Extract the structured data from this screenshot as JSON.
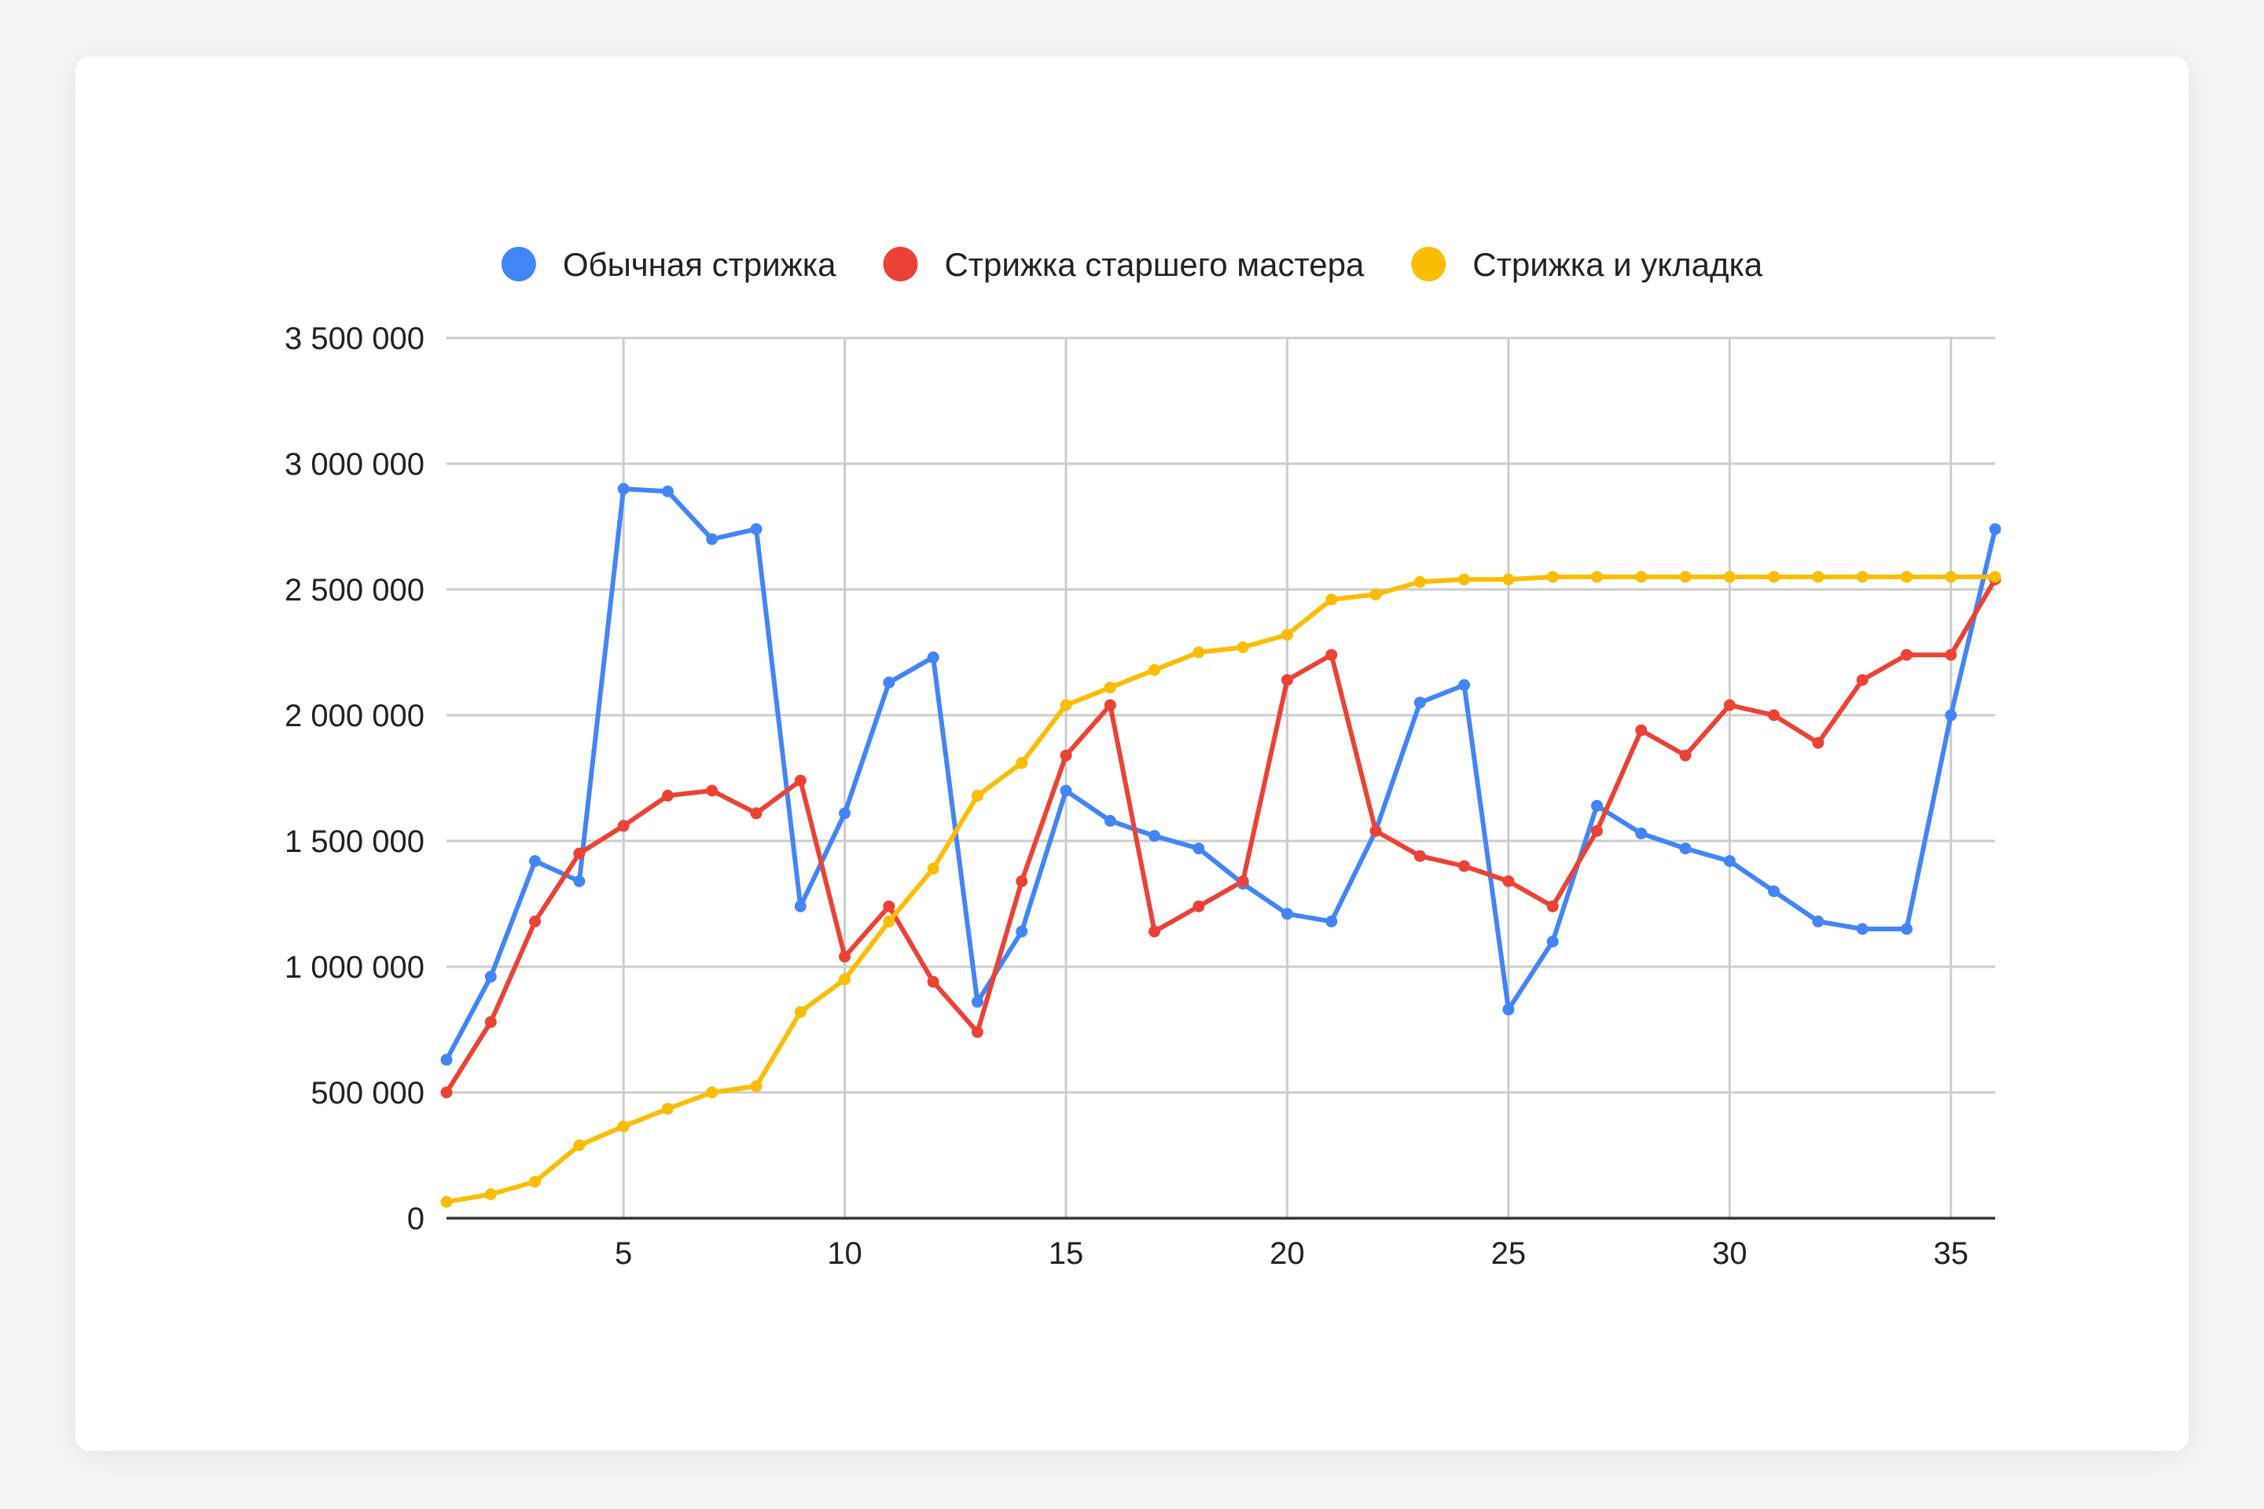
{
  "chart_data": {
    "type": "line",
    "title": "",
    "xlabel": "",
    "ylabel": "",
    "x": [
      1,
      2,
      3,
      4,
      5,
      6,
      7,
      8,
      9,
      10,
      11,
      12,
      13,
      14,
      15,
      16,
      17,
      18,
      19,
      20,
      21,
      22,
      23,
      24,
      25,
      26,
      27,
      28,
      29,
      30,
      31,
      32,
      33,
      34,
      35,
      36
    ],
    "xlim": [
      1,
      36
    ],
    "ylim": [
      0,
      3500000
    ],
    "x_ticks": [
      5,
      10,
      15,
      20,
      25,
      30,
      35
    ],
    "x_tick_labels": [
      "5",
      "10",
      "15",
      "20",
      "25",
      "30",
      "35"
    ],
    "y_ticks": [
      0,
      500000,
      1000000,
      1500000,
      2000000,
      2500000,
      3000000,
      3500000
    ],
    "y_tick_labels": [
      "0",
      "500 000",
      "1 000 000",
      "1 500 000",
      "2 000 000",
      "2 500 000",
      "3 000 000",
      "3 500 000"
    ],
    "grid": true,
    "legend": "top",
    "series": [
      {
        "name": "Обычная стрижка",
        "color": "#4285f4",
        "values": [
          630000,
          960000,
          1420000,
          1340000,
          2900000,
          2890000,
          2700000,
          2740000,
          1240000,
          1610000,
          2130000,
          2230000,
          860000,
          1140000,
          1700000,
          1580000,
          1520000,
          1470000,
          1330000,
          1210000,
          1180000,
          1540000,
          2050000,
          2120000,
          830000,
          1100000,
          1640000,
          1530000,
          1470000,
          1420000,
          1300000,
          1180000,
          1150000,
          1150000,
          2000000,
          2740000
        ]
      },
      {
        "name": "Стрижка старшего мастера",
        "color": "#ea4335",
        "values": [
          500000,
          780000,
          1180000,
          1450000,
          1560000,
          1680000,
          1700000,
          1610000,
          1740000,
          1040000,
          1240000,
          940000,
          740000,
          1340000,
          1840000,
          2040000,
          1140000,
          1240000,
          1340000,
          2140000,
          2240000,
          1540000,
          1440000,
          1400000,
          1340000,
          1240000,
          1540000,
          1940000,
          1840000,
          2040000,
          2000000,
          1890000,
          2140000,
          2240000,
          2240000,
          2540000
        ]
      },
      {
        "name": "Стрижка и укладка",
        "color": "#fbbc04",
        "values": [
          65000,
          95000,
          145000,
          290000,
          365000,
          435000,
          500000,
          525000,
          820000,
          950000,
          1180000,
          1390000,
          1680000,
          1810000,
          2040000,
          2110000,
          2180000,
          2250000,
          2270000,
          2320000,
          2460000,
          2480000,
          2530000,
          2540000,
          2540000,
          2550000,
          2550000,
          2550000,
          2550000,
          2550000,
          2550000,
          2550000,
          2550000,
          2550000,
          2550000,
          2550000
        ]
      }
    ]
  }
}
